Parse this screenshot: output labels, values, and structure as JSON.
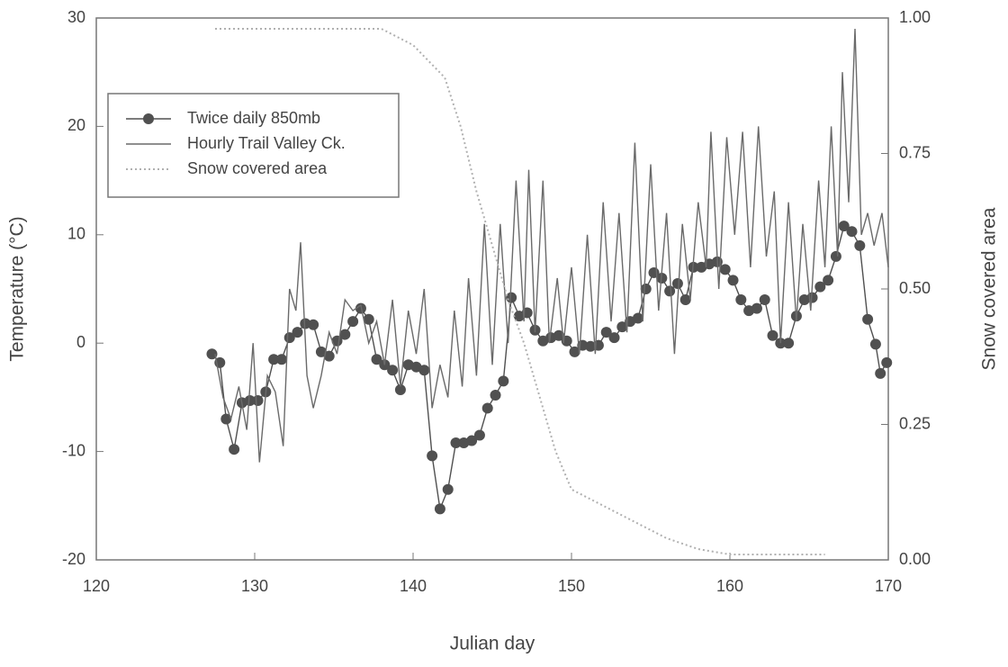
{
  "chart_data": {
    "type": "line",
    "xlabel": "Julian day",
    "ylabel": "Temperature (°C)",
    "y2label": "Snow covered area",
    "xlim": [
      120,
      170
    ],
    "xticks": [
      120,
      130,
      140,
      150,
      160,
      170
    ],
    "ylim": [
      -20,
      30
    ],
    "yticks": [
      -20,
      -10,
      0,
      10,
      20,
      30
    ],
    "y2lim": [
      0,
      1
    ],
    "y2ticks": [
      {
        "value": 0,
        "label": "0.00"
      },
      0.25,
      {
        "value": 0.5,
        "label": "0.50"
      },
      0.75,
      {
        "value": 1,
        "label": "1.00"
      }
    ],
    "legend": "upper left",
    "series": [
      {
        "name": "Twice daily 850mb",
        "color": "#505050",
        "marker": true,
        "x": [
          127.3,
          127.8,
          128.2,
          128.7,
          129.2,
          129.7,
          130.2,
          130.7,
          131.2,
          131.7,
          132.2,
          132.7,
          133.2,
          133.7,
          134.2,
          134.7,
          135.2,
          135.7,
          136.2,
          136.7,
          137.2,
          137.7,
          138.2,
          138.7,
          139.2,
          139.7,
          140.2,
          140.7,
          141.2,
          141.7,
          142.2,
          142.7,
          143.2,
          143.7,
          144.2,
          144.7,
          145.2,
          145.7,
          146.2,
          146.7,
          147.2,
          147.7,
          148.2,
          148.7,
          149.2,
          149.7,
          150.2,
          150.7,
          151.2,
          151.7,
          152.2,
          152.7,
          153.2,
          153.7,
          154.2,
          154.7,
          155.2,
          155.7,
          156.2,
          156.7,
          157.2,
          157.7,
          158.2,
          158.7,
          159.2,
          159.7,
          160.2,
          160.7,
          161.2,
          161.7,
          162.2,
          162.7,
          163.2,
          163.7,
          164.2,
          164.7,
          165.2,
          165.7,
          166.2,
          166.7,
          167.2,
          167.7,
          168.2,
          168.7,
          169.2,
          169.5,
          169.9
        ],
        "values": [
          -1,
          -1.8,
          -7,
          -9.8,
          -5.5,
          -5.3,
          -5.3,
          -4.5,
          -1.5,
          -1.5,
          0.5,
          1,
          1.8,
          1.7,
          -0.8,
          -1.2,
          0.2,
          0.8,
          2,
          3.2,
          2.2,
          -1.5,
          -2,
          -2.5,
          -4.3,
          -2,
          -2.2,
          -2.5,
          -10.4,
          -15.3,
          -13.5,
          -9.2,
          -9.2,
          -9,
          -8.5,
          -6,
          -4.8,
          -3.5,
          4.2,
          2.5,
          2.8,
          1.2,
          0.2,
          0.5,
          0.7,
          0.2,
          -0.8,
          -0.2,
          -0.3,
          -0.2,
          1,
          0.5,
          1.5,
          2,
          2.3,
          5,
          6.5,
          6,
          4.8,
          5.5,
          4,
          7,
          7,
          7.3,
          7.5,
          6.8,
          5.8,
          4,
          3,
          3.2,
          4,
          0.7,
          0,
          0,
          2.5,
          4,
          4.2,
          5.2,
          5.8,
          8,
          10.8,
          10.3,
          9,
          2.2,
          -0.1,
          -2.8,
          -1.8
        ]
      },
      {
        "name": "Hourly Trail Valley Ck.",
        "color": "#6a6a6a",
        "marker": false,
        "x": [
          127.5,
          128,
          128.5,
          129,
          129.5,
          129.9,
          130.3,
          130.8,
          131.3,
          131.8,
          132.2,
          132.6,
          132.9,
          133.3,
          133.7,
          134.2,
          134.7,
          135.2,
          135.7,
          136.2,
          136.7,
          137.2,
          137.7,
          138.2,
          138.7,
          139.2,
          139.7,
          140.2,
          140.7,
          141.2,
          141.7,
          142.2,
          142.6,
          143.1,
          143.5,
          144,
          144.5,
          145,
          145.5,
          146,
          146.5,
          147,
          147.3,
          147.7,
          148.2,
          148.6,
          149.1,
          149.5,
          150,
          150.5,
          151,
          151.5,
          152,
          152.5,
          153,
          153.5,
          154,
          154.5,
          155,
          155.5,
          156,
          156.5,
          157,
          157.5,
          158,
          158.5,
          158.8,
          159.3,
          159.8,
          160.3,
          160.8,
          161.3,
          161.8,
          162.3,
          162.8,
          163.2,
          163.7,
          164.2,
          164.6,
          165.1,
          165.6,
          166,
          166.4,
          166.8,
          167.1,
          167.5,
          167.9,
          168.3,
          168.7,
          169.1,
          169.6,
          170
        ],
        "values": [
          -1,
          -5,
          -7,
          -4,
          -8,
          0,
          -11,
          -3,
          -4.5,
          -9.5,
          5,
          3,
          9.3,
          -3,
          -6,
          -3,
          1,
          -1,
          4,
          3,
          3.5,
          0,
          2,
          -2,
          4,
          -4,
          3,
          -1,
          5,
          -6,
          -2,
          -5,
          3,
          -4,
          6,
          -3,
          11,
          -2,
          11,
          0,
          15,
          2,
          16,
          1,
          15,
          0,
          6,
          0,
          7,
          -1,
          10,
          -1,
          13,
          2,
          12,
          1,
          18.5,
          2,
          16.5,
          3,
          12,
          -1,
          11,
          4,
          13,
          7,
          19.5,
          5,
          19,
          10,
          19.5,
          7,
          20,
          8,
          14,
          0,
          13,
          2,
          11,
          3,
          15,
          7,
          20,
          8,
          25,
          13,
          29,
          10,
          12,
          9,
          12,
          7
        ]
      },
      {
        "name": "Snow covered area",
        "color": "#b0b0b0",
        "marker": false,
        "dashed": true,
        "axis": "y2",
        "x": [
          127.5,
          138,
          140,
          142,
          143,
          144,
          145,
          146,
          147,
          148,
          149,
          150,
          152,
          154,
          156,
          158,
          160,
          166
        ],
        "values": [
          0.98,
          0.98,
          0.95,
          0.89,
          0.8,
          0.68,
          0.58,
          0.48,
          0.4,
          0.3,
          0.2,
          0.13,
          0.1,
          0.07,
          0.04,
          0.02,
          0.01,
          0.01
        ]
      }
    ]
  }
}
